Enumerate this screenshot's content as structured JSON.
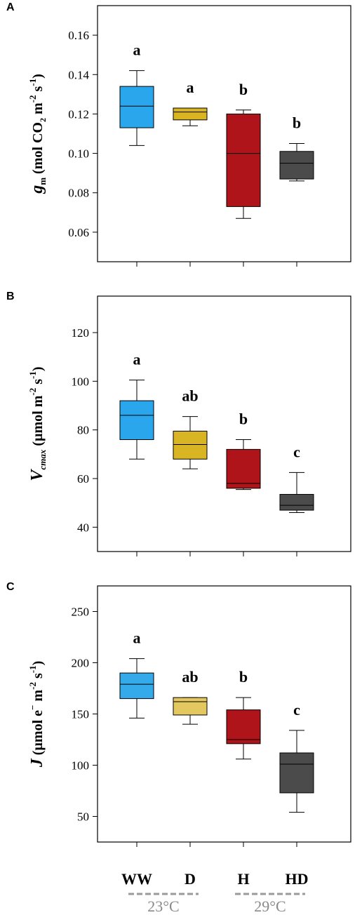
{
  "categories": [
    "WW",
    "D",
    "H",
    "HD"
  ],
  "colors": [
    "#2aa7ec",
    "#d9b523",
    "#ae1419",
    "#4b4b4b"
  ],
  "temperature_groups": [
    {
      "label": "23°C",
      "categories": [
        "WW",
        "D"
      ]
    },
    {
      "label": "29°C",
      "categories": [
        "H",
        "HD"
      ]
    }
  ],
  "chart_data": [
    {
      "type": "box",
      "panel": "A",
      "ylabel": {
        "main": "g",
        "sub": "m",
        "rest": " (mol CO",
        "sub2": "2",
        "units": " m",
        "sup1": "-2",
        "s": " s",
        "sup2": "-1",
        "close": ")"
      },
      "ylim": [
        0.045,
        0.175
      ],
      "yticks": [
        "0.06",
        "0.08",
        "0.10",
        "0.12",
        "0.14",
        "0.16"
      ],
      "grid": false,
      "boxes": [
        {
          "category": "WW",
          "min": 0.104,
          "q1": 0.113,
          "median": 0.124,
          "q3": 0.134,
          "max": 0.142,
          "letter": "a"
        },
        {
          "category": "D",
          "min": 0.114,
          "q1": 0.117,
          "median": 0.121,
          "q3": 0.123,
          "max": 0.123,
          "letter": "a"
        },
        {
          "category": "H",
          "min": 0.067,
          "q1": 0.073,
          "median": 0.1,
          "q3": 0.12,
          "max": 0.122,
          "letter": "b"
        },
        {
          "category": "HD",
          "min": 0.086,
          "q1": 0.087,
          "median": 0.095,
          "q3": 0.101,
          "max": 0.105,
          "letter": "b"
        }
      ]
    },
    {
      "type": "box",
      "panel": "B",
      "ylabel": {
        "main": "V",
        "sub": "cmax",
        "rest": " (µmol m",
        "sup1": "-2",
        "s": " s",
        "sup2": "-1",
        "close": ")"
      },
      "ylim": [
        30,
        135
      ],
      "yticks": [
        "40",
        "60",
        "80",
        "100",
        "120"
      ],
      "grid": false,
      "boxes": [
        {
          "category": "WW",
          "min": 68,
          "q1": 76,
          "median": 86,
          "q3": 92,
          "max": 100.5,
          "letter": "a"
        },
        {
          "category": "D",
          "min": 64,
          "q1": 68,
          "median": 74,
          "q3": 79.5,
          "max": 85.5,
          "letter": "ab"
        },
        {
          "category": "H",
          "min": 55.5,
          "q1": 56,
          "median": 58,
          "q3": 72,
          "max": 76,
          "letter": "b"
        },
        {
          "category": "HD",
          "min": 46,
          "q1": 47,
          "median": 49,
          "q3": 53.5,
          "max": 62.5,
          "letter": "c"
        }
      ]
    },
    {
      "type": "box",
      "panel": "C",
      "ylabel": {
        "main": "J",
        "rest": " (µmol e",
        "sup0": "−",
        "units": " m",
        "sup1": "-2",
        "s": " s",
        "sup2": "-1",
        "close": ")"
      },
      "ylim": [
        25,
        275
      ],
      "yticks": [
        "50",
        "100",
        "150",
        "200",
        "250"
      ],
      "grid": false,
      "boxes": [
        {
          "category": "WW",
          "min": 146,
          "q1": 165,
          "median": 179,
          "q3": 190,
          "max": 204,
          "letter": "a",
          "color": "#35aaeb"
        },
        {
          "category": "D",
          "min": 140,
          "q1": 149,
          "median": 162,
          "q3": 166,
          "max": 166,
          "letter": "ab",
          "color": "#e3c75f"
        },
        {
          "category": "H",
          "min": 106,
          "q1": 121,
          "median": 125,
          "q3": 154,
          "max": 166,
          "letter": "b"
        },
        {
          "category": "HD",
          "min": 54,
          "q1": 73,
          "median": 101,
          "q3": 112,
          "max": 134,
          "letter": "c"
        }
      ]
    }
  ]
}
